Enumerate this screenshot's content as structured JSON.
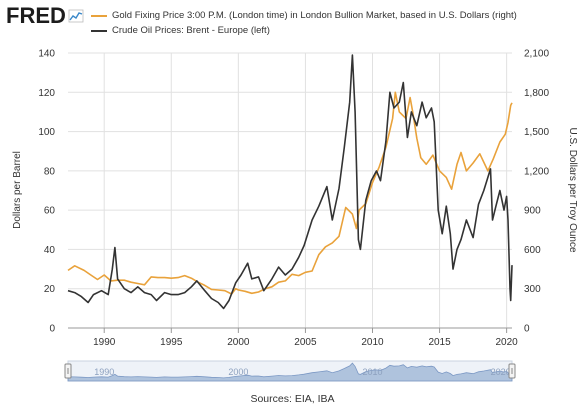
{
  "header": {
    "logo_text": "FRED",
    "legend": [
      {
        "label": "Gold Fixing Price 3:00 P.M. (London time) in London Bullion Market, based in U.S. Dollars (right)",
        "color": "#e9a23b"
      },
      {
        "label": "Crude Oil Prices: Brent - Europe (left)",
        "color": "#333333"
      }
    ]
  },
  "chart_data": {
    "type": "line",
    "x_range": [
      1987.3,
      2020.4
    ],
    "x_ticks": [
      1990,
      1995,
      2000,
      2005,
      2010,
      2015,
      2020
    ],
    "y_left": {
      "label": "Dollars per Barrel",
      "range": [
        0,
        140
      ],
      "ticks": [
        "0",
        "20",
        "40",
        "60",
        "80",
        "100",
        "120",
        "140"
      ]
    },
    "y_right": {
      "label": "U.S. Dollars per Troy Ounce",
      "range": [
        0,
        2100
      ],
      "ticks": [
        "0",
        "300",
        "600",
        "900",
        "1,200",
        "1,500",
        "1,800",
        "2,100"
      ]
    },
    "grid": true,
    "legend_position": "top",
    "series": [
      {
        "name": "Gold Fixing Price 3:00 P.M. (London time) in London Bullion Market, based in U.S. Dollars (right)",
        "axis": "right",
        "color": "#e9a23b",
        "points": [
          [
            1987.3,
            440
          ],
          [
            1987.8,
            475
          ],
          [
            1988.5,
            440
          ],
          [
            1989.0,
            405
          ],
          [
            1989.5,
            370
          ],
          [
            1990.0,
            405
          ],
          [
            1990.5,
            360
          ],
          [
            1991.0,
            365
          ],
          [
            1991.5,
            365
          ],
          [
            1992.0,
            350
          ],
          [
            1992.5,
            340
          ],
          [
            1993.0,
            330
          ],
          [
            1993.5,
            390
          ],
          [
            1994.0,
            385
          ],
          [
            1994.5,
            385
          ],
          [
            1995.0,
            380
          ],
          [
            1995.5,
            385
          ],
          [
            1996.0,
            400
          ],
          [
            1996.5,
            380
          ],
          [
            1997.0,
            350
          ],
          [
            1997.5,
            325
          ],
          [
            1998.0,
            295
          ],
          [
            1998.5,
            290
          ],
          [
            1999.0,
            285
          ],
          [
            1999.5,
            260
          ],
          [
            1999.8,
            300
          ],
          [
            2000.0,
            290
          ],
          [
            2000.5,
            280
          ],
          [
            2001.0,
            265
          ],
          [
            2001.5,
            275
          ],
          [
            2002.0,
            300
          ],
          [
            2002.5,
            315
          ],
          [
            2003.0,
            350
          ],
          [
            2003.5,
            360
          ],
          [
            2004.0,
            410
          ],
          [
            2004.5,
            400
          ],
          [
            2005.0,
            425
          ],
          [
            2005.5,
            435
          ],
          [
            2006.0,
            560
          ],
          [
            2006.5,
            620
          ],
          [
            2007.0,
            650
          ],
          [
            2007.5,
            700
          ],
          [
            2008.0,
            920
          ],
          [
            2008.5,
            870
          ],
          [
            2008.8,
            760
          ],
          [
            2009.0,
            900
          ],
          [
            2009.5,
            950
          ],
          [
            2010.0,
            1110
          ],
          [
            2010.5,
            1230
          ],
          [
            2011.0,
            1380
          ],
          [
            2011.5,
            1600
          ],
          [
            2011.7,
            1800
          ],
          [
            2012.0,
            1650
          ],
          [
            2012.5,
            1600
          ],
          [
            2012.8,
            1760
          ],
          [
            2013.0,
            1650
          ],
          [
            2013.3,
            1450
          ],
          [
            2013.6,
            1300
          ],
          [
            2014.0,
            1250
          ],
          [
            2014.5,
            1320
          ],
          [
            2015.0,
            1200
          ],
          [
            2015.5,
            1150
          ],
          [
            2015.9,
            1060
          ],
          [
            2016.3,
            1250
          ],
          [
            2016.6,
            1340
          ],
          [
            2017.0,
            1200
          ],
          [
            2017.5,
            1260
          ],
          [
            2018.0,
            1330
          ],
          [
            2018.6,
            1200
          ],
          [
            2019.0,
            1290
          ],
          [
            2019.5,
            1420
          ],
          [
            2019.9,
            1480
          ],
          [
            2020.1,
            1570
          ],
          [
            2020.3,
            1700
          ],
          [
            2020.4,
            1720
          ]
        ]
      },
      {
        "name": "Crude Oil Prices: Brent - Europe (left)",
        "axis": "left",
        "color": "#333333",
        "points": [
          [
            1987.3,
            19
          ],
          [
            1987.8,
            18
          ],
          [
            1988.3,
            16
          ],
          [
            1988.8,
            13
          ],
          [
            1989.2,
            17
          ],
          [
            1989.8,
            19
          ],
          [
            1990.3,
            17
          ],
          [
            1990.6,
            30
          ],
          [
            1990.8,
            41
          ],
          [
            1991.0,
            25
          ],
          [
            1991.5,
            20
          ],
          [
            1992.0,
            18
          ],
          [
            1992.5,
            21
          ],
          [
            1993.0,
            18
          ],
          [
            1993.5,
            17
          ],
          [
            1993.9,
            14
          ],
          [
            1994.5,
            18
          ],
          [
            1995.0,
            17
          ],
          [
            1995.5,
            17
          ],
          [
            1996.0,
            18
          ],
          [
            1996.5,
            21
          ],
          [
            1996.9,
            24
          ],
          [
            1997.5,
            19
          ],
          [
            1998.0,
            15
          ],
          [
            1998.5,
            13
          ],
          [
            1998.9,
            10
          ],
          [
            1999.3,
            14
          ],
          [
            1999.8,
            23
          ],
          [
            2000.2,
            27
          ],
          [
            2000.7,
            33
          ],
          [
            2001.0,
            25
          ],
          [
            2001.5,
            26
          ],
          [
            2001.9,
            19
          ],
          [
            2002.5,
            25
          ],
          [
            2003.0,
            31
          ],
          [
            2003.5,
            27
          ],
          [
            2004.0,
            30
          ],
          [
            2004.5,
            36
          ],
          [
            2004.9,
            42
          ],
          [
            2005.5,
            55
          ],
          [
            2006.0,
            62
          ],
          [
            2006.6,
            72
          ],
          [
            2007.0,
            55
          ],
          [
            2007.5,
            71
          ],
          [
            2007.9,
            92
          ],
          [
            2008.3,
            115
          ],
          [
            2008.5,
            139
          ],
          [
            2008.7,
            110
          ],
          [
            2008.95,
            45
          ],
          [
            2009.1,
            40
          ],
          [
            2009.5,
            65
          ],
          [
            2009.9,
            75
          ],
          [
            2010.3,
            80
          ],
          [
            2010.6,
            75
          ],
          [
            2011.0,
            95
          ],
          [
            2011.3,
            120
          ],
          [
            2011.6,
            112
          ],
          [
            2012.0,
            115
          ],
          [
            2012.3,
            125
          ],
          [
            2012.6,
            97
          ],
          [
            2012.9,
            110
          ],
          [
            2013.3,
            103
          ],
          [
            2013.7,
            115
          ],
          [
            2014.0,
            107
          ],
          [
            2014.4,
            112
          ],
          [
            2014.6,
            105
          ],
          [
            2014.9,
            60
          ],
          [
            2015.2,
            48
          ],
          [
            2015.5,
            62
          ],
          [
            2015.8,
            48
          ],
          [
            2016.0,
            30
          ],
          [
            2016.3,
            40
          ],
          [
            2016.6,
            45
          ],
          [
            2017.0,
            55
          ],
          [
            2017.5,
            46
          ],
          [
            2017.9,
            63
          ],
          [
            2018.3,
            70
          ],
          [
            2018.8,
            81
          ],
          [
            2018.95,
            55
          ],
          [
            2019.2,
            62
          ],
          [
            2019.5,
            70
          ],
          [
            2019.8,
            60
          ],
          [
            2020.0,
            67
          ],
          [
            2020.1,
            55
          ],
          [
            2020.25,
            20
          ],
          [
            2020.3,
            14
          ],
          [
            2020.4,
            32
          ]
        ]
      }
    ],
    "navigator": {
      "tick_labels": [
        "1990",
        "2000",
        "2010",
        "2020"
      ],
      "tick_years": [
        1990,
        2000,
        2010,
        2020
      ]
    }
  },
  "footer": {
    "source": "Sources: EIA, IBA"
  }
}
